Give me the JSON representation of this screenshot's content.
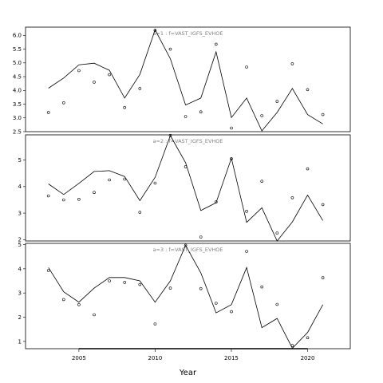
{
  "chart_data": {
    "type": "line",
    "xlabel": "Year",
    "xlim": [
      2001.5,
      2022.8
    ],
    "x_ticks": [
      2005,
      2010,
      2015,
      2020
    ],
    "x": [
      2003,
      2004,
      2005,
      2006,
      2007,
      2008,
      2009,
      2010,
      2011,
      2012,
      2013,
      2014,
      2015,
      2016,
      2017,
      2018,
      2019,
      2020,
      2021
    ],
    "panels": [
      {
        "label": "a=1 : f=VAST_IGFS_EVHOE",
        "ylim": [
          2.5,
          6.3
        ],
        "y_ticks": [
          "2.5",
          "3.0",
          "3.5",
          "4.0",
          "4.5",
          "5.0",
          "5.5",
          "6.0"
        ],
        "fitted": [
          4.08,
          4.45,
          4.93,
          4.99,
          4.73,
          3.72,
          4.58,
          6.2,
          5.15,
          3.47,
          3.72,
          5.4,
          3.01,
          3.72,
          2.53,
          3.2,
          4.07,
          3.12,
          2.78
        ],
        "observed": [
          3.2,
          3.55,
          4.72,
          4.3,
          4.57,
          3.38,
          4.07,
          6.18,
          5.5,
          3.05,
          3.22,
          5.68,
          2.63,
          4.85,
          3.08,
          3.6,
          4.97,
          4.03,
          3.12
        ]
      },
      {
        "label": "a=2 : f=VAST_IGFS_EVHOE",
        "ylim": [
          1.95,
          5.95
        ],
        "y_ticks": [
          "2",
          "3",
          "4",
          "5"
        ],
        "fitted": [
          4.1,
          3.7,
          4.12,
          4.57,
          4.6,
          4.38,
          3.47,
          4.35,
          5.92,
          4.9,
          3.1,
          3.39,
          5.07,
          2.65,
          3.2,
          1.95,
          2.67,
          3.68,
          2.72
        ],
        "observed": [
          3.65,
          3.5,
          3.52,
          3.78,
          4.25,
          4.28,
          3.03,
          4.13,
          5.93,
          4.75,
          2.1,
          3.42,
          5.05,
          3.07,
          4.2,
          2.25,
          3.58,
          4.67,
          3.32
        ]
      },
      {
        "label": "a=3 : f=VAST_IGFS_EVHOE",
        "ylim": [
          0.7,
          5.05
        ],
        "y_ticks": [
          "1",
          "2",
          "3",
          "4",
          "5"
        ],
        "fitted": [
          4.05,
          3.05,
          2.62,
          3.2,
          3.64,
          3.64,
          3.5,
          2.62,
          3.5,
          4.97,
          3.83,
          2.18,
          2.52,
          4.05,
          1.57,
          1.95,
          0.72,
          1.37,
          2.52
        ],
        "observed": [
          3.93,
          2.73,
          2.52,
          2.1,
          3.5,
          3.44,
          3.35,
          1.72,
          3.2,
          4.97,
          3.18,
          2.58,
          2.23,
          4.72,
          3.25,
          2.53,
          0.83,
          1.15,
          3.63
        ]
      }
    ]
  }
}
